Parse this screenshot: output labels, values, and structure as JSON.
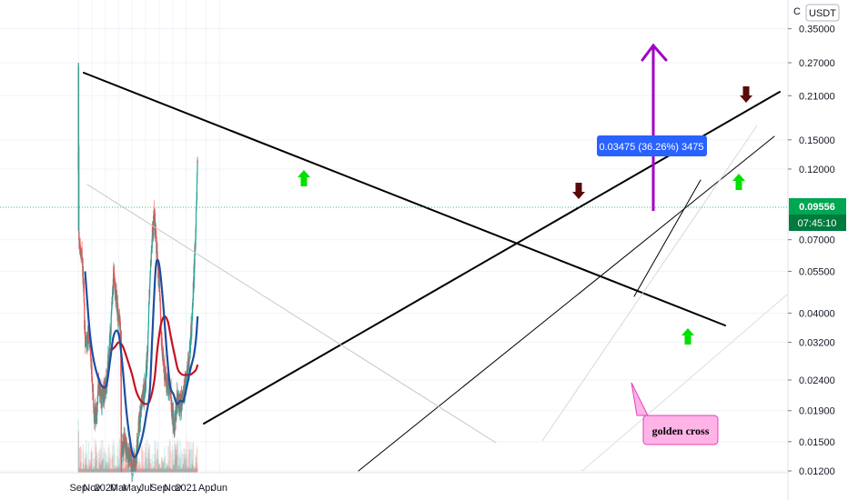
{
  "symbol": {
    "currency": "USDT"
  },
  "price_scale": {
    "ticks": [
      "0.35000",
      "0.27000",
      "0.21000",
      "0.15000",
      "0.12000",
      "0.07000",
      "0.05500",
      "0.04000",
      "0.03200",
      "0.02400",
      "0.01900",
      "0.01500",
      "0.01200"
    ],
    "current_price": "0.09556",
    "countdown": "07:45:10",
    "current_price_color": "#00a651",
    "countdown_color": "#007a3d"
  },
  "time_scale": {
    "ticks": [
      "Sep",
      "Nov",
      "2020",
      "Mar",
      "May",
      "Jul",
      "Sep",
      "Nov",
      "2021",
      "Apr",
      "Jun"
    ]
  },
  "measure_label": {
    "text": "0.03475 (36.26%) 3475",
    "color": "#2962ff"
  },
  "annotation": {
    "text": "golden cross",
    "fill": "#ffb3e6",
    "border": "#e040c0"
  },
  "markers": [
    {
      "type": "up-arrow",
      "color": "#00e000"
    },
    {
      "type": "up-arrow",
      "color": "#00e000"
    },
    {
      "type": "up-arrow",
      "color": "#00e000"
    },
    {
      "type": "down-arrow",
      "color": "#5a0a0a"
    },
    {
      "type": "down-arrow",
      "color": "#5a0a0a"
    }
  ],
  "colors": {
    "up_candle": "#26a69a",
    "down_candle": "#ef5350",
    "fast_ma": "#1c4fa0",
    "slow_ma": "#c4121f",
    "trendline": "#000000",
    "target_arrow": "#a100c4"
  },
  "chart_data": {
    "type": "candlestick",
    "scale": "log",
    "x_range": [
      "2019-08-31",
      "2021-06-20"
    ],
    "y_range": [
      0.0115,
      0.45
    ],
    "price_path": [
      [
        "2019-09-01",
        0.27
      ],
      [
        "2019-09-03",
        0.07
      ],
      [
        "2019-09-14",
        0.065
      ],
      [
        "2019-09-22",
        0.055
      ],
      [
        "2019-10-01",
        0.032
      ],
      [
        "2019-10-24",
        0.032
      ],
      [
        "2019-11-01",
        0.025
      ],
      [
        "2019-11-10",
        0.019
      ],
      [
        "2019-11-20",
        0.018
      ],
      [
        "2019-12-01",
        0.023
      ],
      [
        "2019-12-15",
        0.021
      ],
      [
        "2020-01-05",
        0.023
      ],
      [
        "2020-01-25",
        0.035
      ],
      [
        "2020-02-07",
        0.055
      ],
      [
        "2020-02-14",
        0.049
      ],
      [
        "2020-02-29",
        0.038
      ],
      [
        "2020-03-10",
        0.034
      ],
      [
        "2020-03-13",
        0.014
      ],
      [
        "2020-03-25",
        0.015
      ],
      [
        "2020-04-15",
        0.014
      ],
      [
        "2020-05-01",
        0.0125
      ],
      [
        "2020-05-17",
        0.013
      ],
      [
        "2020-06-01",
        0.017
      ],
      [
        "2020-06-20",
        0.021
      ],
      [
        "2020-07-01",
        0.023
      ],
      [
        "2020-07-10",
        0.03
      ],
      [
        "2020-07-20",
        0.05
      ],
      [
        "2020-08-01",
        0.075
      ],
      [
        "2020-08-10",
        0.085
      ],
      [
        "2020-08-20",
        0.065
      ],
      [
        "2020-09-01",
        0.05
      ],
      [
        "2020-09-10",
        0.033
      ],
      [
        "2020-09-20",
        0.027
      ],
      [
        "2020-10-05",
        0.023
      ],
      [
        "2020-10-20",
        0.023
      ],
      [
        "2020-11-01",
        0.018
      ],
      [
        "2020-11-10",
        0.017
      ],
      [
        "2020-11-22",
        0.021
      ],
      [
        "2020-12-05",
        0.02
      ],
      [
        "2020-12-20",
        0.021
      ],
      [
        "2021-01-01",
        0.025
      ],
      [
        "2021-01-15",
        0.028
      ],
      [
        "2021-01-25",
        0.036
      ],
      [
        "2021-02-01",
        0.045
      ],
      [
        "2021-02-08",
        0.06
      ],
      [
        "2021-02-14",
        0.075
      ],
      [
        "2021-02-18",
        0.1
      ],
      [
        "2021-02-22",
        0.13
      ]
    ],
    "fast_ma": {
      "points": [
        [
          "2019-10-01",
          0.055
        ],
        [
          "2019-10-20",
          0.036
        ],
        [
          "2019-11-05",
          0.029
        ],
        [
          "2019-11-25",
          0.025
        ],
        [
          "2019-12-15",
          0.023
        ],
        [
          "2020-01-05",
          0.023
        ],
        [
          "2020-01-20",
          0.027
        ],
        [
          "2020-02-05",
          0.033
        ],
        [
          "2020-02-20",
          0.035
        ],
        [
          "2020-03-05",
          0.033
        ],
        [
          "2020-03-20",
          0.026
        ],
        [
          "2020-04-05",
          0.019
        ],
        [
          "2020-04-20",
          0.0155
        ],
        [
          "2020-05-05",
          0.0135
        ],
        [
          "2020-05-20",
          0.0135
        ],
        [
          "2020-06-05",
          0.0145
        ],
        [
          "2020-06-20",
          0.016
        ],
        [
          "2020-07-05",
          0.0185
        ],
        [
          "2020-07-20",
          0.022
        ],
        [
          "2020-08-01",
          0.034
        ],
        [
          "2020-08-15",
          0.055
        ],
        [
          "2020-08-25",
          0.06
        ],
        [
          "2020-09-05",
          0.055
        ],
        [
          "2020-09-20",
          0.042
        ],
        [
          "2020-10-05",
          0.03
        ],
        [
          "2020-10-20",
          0.023
        ],
        [
          "2020-11-05",
          0.0215
        ],
        [
          "2020-11-20",
          0.02
        ],
        [
          "2020-12-05",
          0.0205
        ],
        [
          "2020-12-20",
          0.0205
        ],
        [
          "2021-01-05",
          0.023
        ],
        [
          "2021-01-20",
          0.026
        ],
        [
          "2021-02-05",
          0.029
        ],
        [
          "2021-02-15",
          0.033
        ],
        [
          "2021-02-22",
          0.039
        ]
      ]
    },
    "slow_ma": {
      "points": [
        [
          "2020-01-25",
          0.03
        ],
        [
          "2020-02-15",
          0.031
        ],
        [
          "2020-03-01",
          0.032
        ],
        [
          "2020-03-20",
          0.031
        ],
        [
          "2020-04-10",
          0.028
        ],
        [
          "2020-05-01",
          0.025
        ],
        [
          "2020-05-20",
          0.022
        ],
        [
          "2020-06-10",
          0.0205
        ],
        [
          "2020-07-01",
          0.02
        ],
        [
          "2020-07-20",
          0.0205
        ],
        [
          "2020-08-10",
          0.024
        ],
        [
          "2020-08-25",
          0.031
        ],
        [
          "2020-09-10",
          0.037
        ],
        [
          "2020-09-25",
          0.039
        ],
        [
          "2020-10-10",
          0.0375
        ],
        [
          "2020-10-25",
          0.033
        ],
        [
          "2020-11-10",
          0.029
        ],
        [
          "2020-11-25",
          0.026
        ],
        [
          "2020-12-15",
          0.025
        ],
        [
          "2021-01-05",
          0.025
        ],
        [
          "2021-01-20",
          0.025
        ],
        [
          "2021-02-05",
          0.0255
        ],
        [
          "2021-02-15",
          0.026
        ],
        [
          "2021-02-22",
          0.027
        ]
      ]
    }
  }
}
